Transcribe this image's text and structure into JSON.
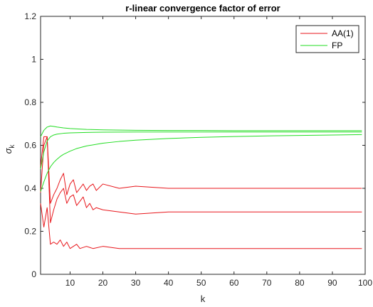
{
  "chart_data": {
    "type": "line",
    "title": "r-linear convergence factor of error",
    "xlabel": "k",
    "ylabel": "σ",
    "ylabel_subscript": "k",
    "xlim": [
      1,
      100
    ],
    "ylim": [
      0,
      1.2
    ],
    "xticks": [
      10,
      20,
      30,
      40,
      50,
      60,
      70,
      80,
      90,
      100
    ],
    "yticks": [
      0,
      0.2,
      0.4,
      0.6,
      0.8,
      1,
      1.2
    ],
    "ytick_labels": [
      "0",
      "0.2",
      "0.4",
      "0.6",
      "0.8",
      "1",
      "1.2"
    ],
    "grid": false,
    "legend_position": "top-right",
    "legend": [
      {
        "name": "AA(1)",
        "color": "#e8161b"
      },
      {
        "name": "FP",
        "color": "#22dd22"
      }
    ],
    "series": [
      {
        "group": "AA(1)",
        "color": "#e8161b",
        "x": [
          1,
          2,
          3,
          4,
          5,
          6,
          7,
          8,
          9,
          10,
          11,
          12,
          13,
          14,
          15,
          16,
          17,
          18,
          20,
          25,
          30,
          40,
          50,
          60,
          70,
          80,
          90,
          99
        ],
        "y": [
          0.5,
          0.64,
          0.64,
          0.33,
          0.37,
          0.4,
          0.44,
          0.47,
          0.37,
          0.42,
          0.44,
          0.38,
          0.4,
          0.42,
          0.39,
          0.41,
          0.42,
          0.39,
          0.42,
          0.4,
          0.41,
          0.4,
          0.4,
          0.4,
          0.4,
          0.4,
          0.4,
          0.4
        ]
      },
      {
        "group": "AA(1)",
        "color": "#e8161b",
        "x": [
          1,
          2,
          3,
          4,
          5,
          6,
          7,
          8,
          9,
          10,
          11,
          12,
          13,
          14,
          15,
          16,
          17,
          18,
          20,
          25,
          30,
          40,
          50,
          60,
          70,
          80,
          90,
          99
        ],
        "y": [
          0.38,
          0.6,
          0.64,
          0.24,
          0.3,
          0.35,
          0.38,
          0.4,
          0.33,
          0.36,
          0.37,
          0.32,
          0.34,
          0.36,
          0.31,
          0.33,
          0.3,
          0.31,
          0.3,
          0.29,
          0.28,
          0.29,
          0.29,
          0.29,
          0.29,
          0.29,
          0.29,
          0.29
        ]
      },
      {
        "group": "AA(1)",
        "color": "#e8161b",
        "x": [
          1,
          2,
          3,
          4,
          5,
          6,
          7,
          8,
          9,
          10,
          11,
          12,
          13,
          15,
          17,
          20,
          25,
          30,
          40,
          50,
          60,
          70,
          80,
          90,
          99
        ],
        "y": [
          0.33,
          0.22,
          0.31,
          0.14,
          0.15,
          0.14,
          0.16,
          0.13,
          0.15,
          0.12,
          0.13,
          0.14,
          0.12,
          0.13,
          0.12,
          0.13,
          0.12,
          0.12,
          0.12,
          0.12,
          0.12,
          0.12,
          0.12,
          0.12,
          0.12
        ]
      },
      {
        "group": "FP",
        "color": "#22dd22",
        "x": [
          1,
          2,
          3,
          4,
          5,
          6,
          8,
          10,
          15,
          20,
          30,
          40,
          50,
          60,
          70,
          80,
          90,
          99
        ],
        "y": [
          0.64,
          0.67,
          0.685,
          0.69,
          0.688,
          0.685,
          0.681,
          0.678,
          0.674,
          0.672,
          0.67,
          0.669,
          0.669,
          0.668,
          0.668,
          0.668,
          0.668,
          0.668
        ]
      },
      {
        "group": "FP",
        "color": "#22dd22",
        "x": [
          1,
          2,
          3,
          4,
          5,
          6,
          8,
          10,
          15,
          20,
          30,
          40,
          50,
          60,
          70,
          80,
          90,
          99
        ],
        "y": [
          0.49,
          0.57,
          0.62,
          0.64,
          0.648,
          0.652,
          0.656,
          0.658,
          0.66,
          0.661,
          0.662,
          0.662,
          0.662,
          0.662,
          0.662,
          0.662,
          0.662,
          0.662
        ]
      },
      {
        "group": "FP",
        "color": "#22dd22",
        "x": [
          1,
          2,
          3,
          4,
          5,
          6,
          7,
          8,
          10,
          12,
          15,
          20,
          25,
          30,
          40,
          50,
          60,
          70,
          80,
          90,
          99
        ],
        "y": [
          0.385,
          0.43,
          0.47,
          0.5,
          0.52,
          0.535,
          0.548,
          0.558,
          0.573,
          0.585,
          0.597,
          0.61,
          0.618,
          0.624,
          0.632,
          0.637,
          0.641,
          0.644,
          0.646,
          0.648,
          0.65
        ]
      }
    ]
  }
}
